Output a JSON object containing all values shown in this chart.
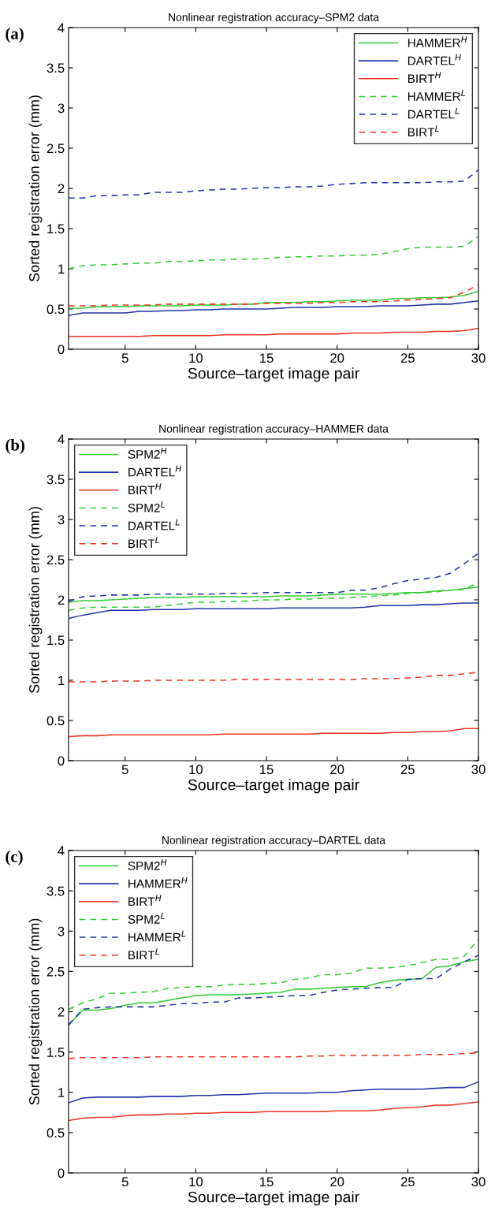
{
  "chart_data": [
    {
      "type": "line",
      "title": "Nonlinear registration accuracy–SPM2 data",
      "xlabel": "Source–target image pair",
      "ylabel": "Sorted registration error (mm)",
      "annotations": [
        "(a)"
      ],
      "x": [
        1,
        2,
        3,
        4,
        5,
        6,
        7,
        8,
        9,
        10,
        11,
        12,
        13,
        14,
        15,
        16,
        17,
        18,
        19,
        20,
        21,
        22,
        23,
        24,
        25,
        26,
        27,
        28,
        29,
        30
      ],
      "xlim": [
        1,
        30
      ],
      "xticks": [
        5,
        10,
        15,
        20,
        25,
        30
      ],
      "ylim": [
        0,
        4
      ],
      "yticks": [
        0,
        0.5,
        1,
        1.5,
        2,
        2.5,
        3,
        3.5,
        4
      ],
      "grid": false,
      "legend": "top right",
      "marker": "none",
      "series": [
        {
          "name": "HAMMER$^{H}$",
          "color": "#33cc33",
          "line_style": "solid",
          "values": [
            0.51,
            0.51,
            0.53,
            0.53,
            0.53,
            0.54,
            0.54,
            0.54,
            0.54,
            0.55,
            0.55,
            0.55,
            0.56,
            0.56,
            0.58,
            0.58,
            0.58,
            0.59,
            0.59,
            0.6,
            0.61,
            0.61,
            0.61,
            0.63,
            0.63,
            0.64,
            0.64,
            0.65,
            0.67,
            0.72
          ]
        },
        {
          "name": "DARTEL$^{H}$",
          "color": "#2233aa",
          "line_style": "solid",
          "values": [
            0.42,
            0.45,
            0.45,
            0.45,
            0.45,
            0.47,
            0.47,
            0.48,
            0.48,
            0.49,
            0.49,
            0.5,
            0.5,
            0.5,
            0.5,
            0.51,
            0.52,
            0.52,
            0.52,
            0.53,
            0.53,
            0.53,
            0.54,
            0.54,
            0.54,
            0.55,
            0.56,
            0.56,
            0.58,
            0.6
          ]
        },
        {
          "name": "BIRT$^{H}$",
          "color": "#ee3322",
          "line_style": "solid",
          "values": [
            0.16,
            0.16,
            0.16,
            0.16,
            0.16,
            0.16,
            0.17,
            0.17,
            0.17,
            0.17,
            0.17,
            0.18,
            0.18,
            0.18,
            0.18,
            0.19,
            0.19,
            0.19,
            0.19,
            0.19,
            0.2,
            0.2,
            0.2,
            0.21,
            0.21,
            0.21,
            0.22,
            0.22,
            0.23,
            0.26
          ]
        },
        {
          "name": "HAMMER$^{L}$",
          "color": "#33cc33",
          "line_style": "dashed",
          "values": [
            1.0,
            1.04,
            1.05,
            1.05,
            1.06,
            1.07,
            1.07,
            1.09,
            1.09,
            1.1,
            1.11,
            1.11,
            1.12,
            1.12,
            1.13,
            1.14,
            1.15,
            1.15,
            1.16,
            1.16,
            1.17,
            1.17,
            1.18,
            1.21,
            1.25,
            1.27,
            1.27,
            1.27,
            1.28,
            1.4
          ]
        },
        {
          "name": "DARTEL$^{L}$",
          "color": "#2233aa",
          "line_style": "dashed",
          "values": [
            1.88,
            1.88,
            1.91,
            1.91,
            1.92,
            1.92,
            1.95,
            1.95,
            1.95,
            1.97,
            1.98,
            1.99,
            1.99,
            2.0,
            2.01,
            2.01,
            2.02,
            2.02,
            2.03,
            2.05,
            2.06,
            2.07,
            2.07,
            2.07,
            2.07,
            2.07,
            2.08,
            2.08,
            2.09,
            2.23
          ]
        },
        {
          "name": "BIRT$^{L}$",
          "color": "#ee3322",
          "line_style": "dashed",
          "values": [
            0.54,
            0.54,
            0.54,
            0.55,
            0.55,
            0.55,
            0.55,
            0.56,
            0.56,
            0.56,
            0.56,
            0.56,
            0.56,
            0.56,
            0.57,
            0.57,
            0.57,
            0.57,
            0.58,
            0.58,
            0.59,
            0.59,
            0.59,
            0.6,
            0.61,
            0.62,
            0.63,
            0.64,
            0.71,
            0.8
          ]
        }
      ]
    },
    {
      "type": "line",
      "title": "Nonlinear registration accuracy–HAMMER data",
      "xlabel": "Source–target image pair",
      "ylabel": "Sorted registration error (mm)",
      "annotations": [
        "(b)"
      ],
      "x": [
        1,
        2,
        3,
        4,
        5,
        6,
        7,
        8,
        9,
        10,
        11,
        12,
        13,
        14,
        15,
        16,
        17,
        18,
        19,
        20,
        21,
        22,
        23,
        24,
        25,
        26,
        27,
        28,
        29,
        30
      ],
      "xlim": [
        1,
        30
      ],
      "xticks": [
        5,
        10,
        15,
        20,
        25,
        30
      ],
      "ylim": [
        0,
        4
      ],
      "yticks": [
        0,
        0.5,
        1,
        1.5,
        2,
        2.5,
        3,
        3.5,
        4
      ],
      "grid": false,
      "legend": "top left",
      "marker": "none",
      "series": [
        {
          "name": "SPM2$^{H}$",
          "color": "#33cc33",
          "line_style": "solid",
          "values": [
            1.97,
            1.99,
            1.99,
            2.0,
            2.01,
            2.02,
            2.03,
            2.03,
            2.03,
            2.04,
            2.04,
            2.04,
            2.04,
            2.04,
            2.04,
            2.05,
            2.05,
            2.05,
            2.06,
            2.07,
            2.07,
            2.07,
            2.07,
            2.08,
            2.09,
            2.09,
            2.11,
            2.12,
            2.14,
            2.16
          ]
        },
        {
          "name": "DARTEL$^{H}$",
          "color": "#2233aa",
          "line_style": "solid",
          "values": [
            1.77,
            1.81,
            1.84,
            1.87,
            1.87,
            1.87,
            1.88,
            1.88,
            1.88,
            1.89,
            1.89,
            1.89,
            1.89,
            1.89,
            1.89,
            1.9,
            1.9,
            1.9,
            1.9,
            1.9,
            1.9,
            1.91,
            1.93,
            1.93,
            1.93,
            1.94,
            1.94,
            1.95,
            1.96,
            1.96
          ]
        },
        {
          "name": "BIRT$^{H}$",
          "color": "#ee3322",
          "line_style": "solid",
          "values": [
            0.3,
            0.31,
            0.31,
            0.32,
            0.32,
            0.32,
            0.32,
            0.32,
            0.32,
            0.32,
            0.32,
            0.33,
            0.33,
            0.33,
            0.33,
            0.33,
            0.33,
            0.33,
            0.34,
            0.34,
            0.34,
            0.34,
            0.34,
            0.35,
            0.35,
            0.36,
            0.36,
            0.37,
            0.4,
            0.4
          ]
        },
        {
          "name": "SPM2$^{L}$",
          "color": "#33cc33",
          "line_style": "dashed",
          "values": [
            1.87,
            1.9,
            1.91,
            1.91,
            1.91,
            1.91,
            1.91,
            1.93,
            1.95,
            1.97,
            1.97,
            1.98,
            1.98,
            1.99,
            2.0,
            2.0,
            2.01,
            2.01,
            2.02,
            2.02,
            2.03,
            2.04,
            2.05,
            2.06,
            2.08,
            2.09,
            2.1,
            2.12,
            2.13,
            2.22
          ]
        },
        {
          "name": "DARTEL$^{L}$",
          "color": "#2233aa",
          "line_style": "dashed",
          "values": [
            1.98,
            2.04,
            2.05,
            2.06,
            2.06,
            2.06,
            2.07,
            2.07,
            2.07,
            2.07,
            2.07,
            2.08,
            2.08,
            2.08,
            2.09,
            2.09,
            2.09,
            2.09,
            2.09,
            2.09,
            2.12,
            2.12,
            2.15,
            2.2,
            2.24,
            2.26,
            2.28,
            2.33,
            2.45,
            2.58
          ]
        },
        {
          "name": "BIRT$^{L}$",
          "color": "#ee3322",
          "line_style": "dashed",
          "values": [
            0.98,
            0.98,
            0.98,
            0.99,
            0.99,
            0.99,
            1.0,
            1.0,
            1.0,
            1.0,
            1.0,
            1.0,
            1.01,
            1.01,
            1.01,
            1.01,
            1.01,
            1.01,
            1.01,
            1.01,
            1.01,
            1.02,
            1.02,
            1.02,
            1.03,
            1.04,
            1.06,
            1.06,
            1.08,
            1.1
          ]
        }
      ]
    },
    {
      "type": "line",
      "title": "Nonlinear registration accuracy–DARTEL data",
      "xlabel": "Source–target image pair",
      "ylabel": "Sorted registration error (mm)",
      "annotations": [
        "(c)"
      ],
      "x": [
        1,
        2,
        3,
        4,
        5,
        6,
        7,
        8,
        9,
        10,
        11,
        12,
        13,
        14,
        15,
        16,
        17,
        18,
        19,
        20,
        21,
        22,
        23,
        24,
        25,
        26,
        27,
        28,
        29,
        30
      ],
      "xlim": [
        1,
        30
      ],
      "xticks": [
        5,
        10,
        15,
        20,
        25,
        30
      ],
      "ylim": [
        0,
        4
      ],
      "yticks": [
        0,
        0.5,
        1,
        1.5,
        2,
        2.5,
        3,
        3.5,
        4
      ],
      "grid": false,
      "legend": "top left",
      "marker": "none",
      "series": [
        {
          "name": "SPM2$^{H}$",
          "color": "#33cc33",
          "line_style": "solid",
          "values": [
            1.83,
            2.02,
            2.02,
            2.04,
            2.08,
            2.11,
            2.11,
            2.14,
            2.17,
            2.2,
            2.21,
            2.21,
            2.21,
            2.22,
            2.23,
            2.24,
            2.28,
            2.28,
            2.29,
            2.3,
            2.31,
            2.31,
            2.36,
            2.39,
            2.4,
            2.41,
            2.55,
            2.57,
            2.62,
            2.65
          ]
        },
        {
          "name": "HAMMER$^{H}$",
          "color": "#2233aa",
          "line_style": "solid",
          "values": [
            0.87,
            0.93,
            0.94,
            0.94,
            0.94,
            0.94,
            0.95,
            0.95,
            0.95,
            0.96,
            0.96,
            0.97,
            0.97,
            0.98,
            0.99,
            0.99,
            0.99,
            0.99,
            1.0,
            1.0,
            1.02,
            1.03,
            1.04,
            1.04,
            1.04,
            1.04,
            1.05,
            1.06,
            1.06,
            1.13
          ]
        },
        {
          "name": "BIRT$^{H}$",
          "color": "#ee3322",
          "line_style": "solid",
          "values": [
            0.65,
            0.68,
            0.69,
            0.69,
            0.71,
            0.72,
            0.72,
            0.73,
            0.73,
            0.74,
            0.74,
            0.75,
            0.75,
            0.75,
            0.76,
            0.76,
            0.76,
            0.76,
            0.76,
            0.77,
            0.77,
            0.77,
            0.78,
            0.8,
            0.81,
            0.82,
            0.84,
            0.84,
            0.86,
            0.88
          ]
        },
        {
          "name": "SPM2$^{L}$",
          "color": "#33cc33",
          "line_style": "dashed",
          "values": [
            2.03,
            2.11,
            2.16,
            2.23,
            2.23,
            2.24,
            2.25,
            2.29,
            2.3,
            2.31,
            2.31,
            2.33,
            2.34,
            2.34,
            2.35,
            2.36,
            2.4,
            2.42,
            2.46,
            2.46,
            2.48,
            2.54,
            2.54,
            2.55,
            2.57,
            2.61,
            2.65,
            2.65,
            2.69,
            2.9
          ]
        },
        {
          "name": "HAMMER$^{L}$",
          "color": "#2233aa",
          "line_style": "dashed",
          "values": [
            1.84,
            2.03,
            2.05,
            2.06,
            2.06,
            2.06,
            2.06,
            2.08,
            2.1,
            2.1,
            2.12,
            2.12,
            2.17,
            2.17,
            2.18,
            2.19,
            2.2,
            2.2,
            2.24,
            2.27,
            2.28,
            2.29,
            2.3,
            2.3,
            2.4,
            2.41,
            2.41,
            2.53,
            2.62,
            2.7
          ]
        },
        {
          "name": "BIRT$^{L}$",
          "color": "#ee3322",
          "line_style": "dashed",
          "values": [
            1.42,
            1.43,
            1.43,
            1.43,
            1.43,
            1.43,
            1.44,
            1.44,
            1.44,
            1.44,
            1.44,
            1.44,
            1.44,
            1.44,
            1.44,
            1.44,
            1.44,
            1.45,
            1.45,
            1.46,
            1.46,
            1.46,
            1.46,
            1.46,
            1.46,
            1.47,
            1.47,
            1.47,
            1.48,
            1.49
          ]
        }
      ]
    }
  ]
}
